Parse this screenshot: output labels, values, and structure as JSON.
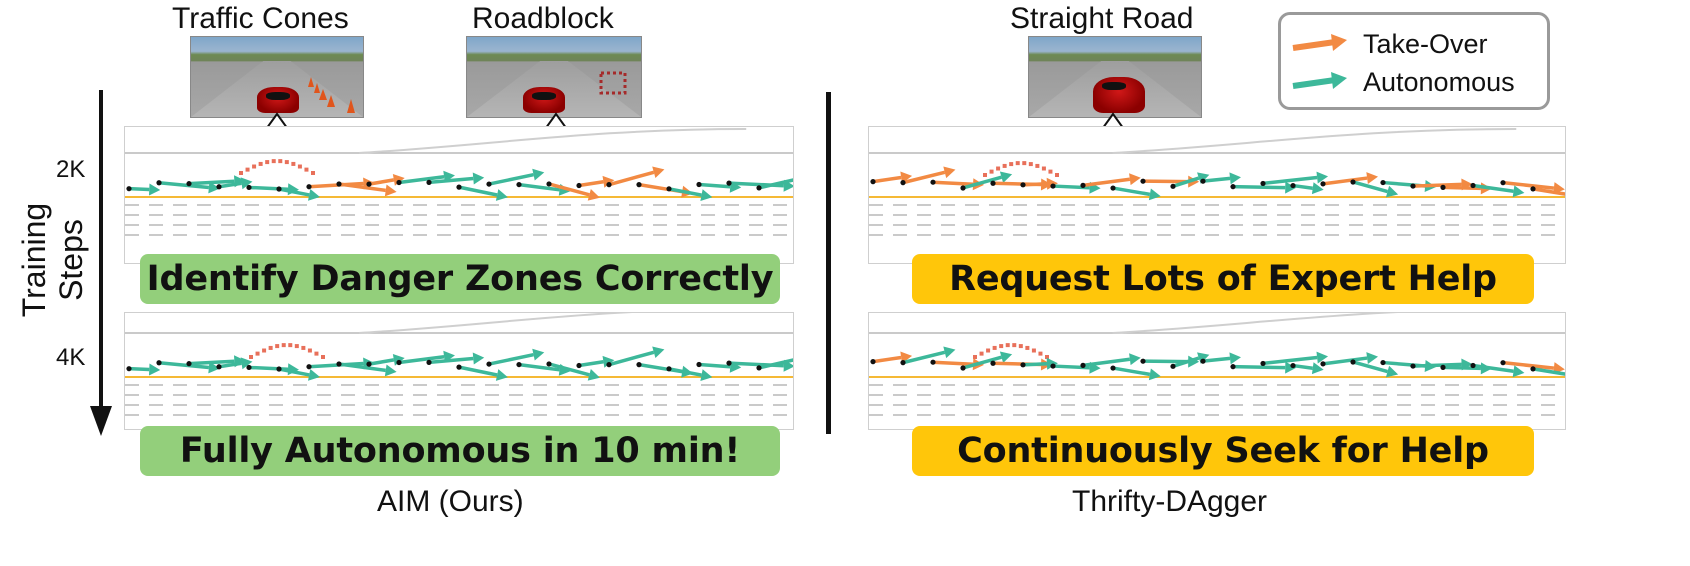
{
  "top_labels": {
    "cones": "Traffic Cones",
    "roadblock": "Roadblock",
    "straight": "Straight Road"
  },
  "legend": {
    "take_over": "Take-Over",
    "autonomous": "Autonomous",
    "take_over_color": "#f28a43",
    "autonomous_color": "#3db89a"
  },
  "axis": {
    "label": "Training Steps",
    "step_2k": "2K",
    "step_4k": "4K"
  },
  "banners": {
    "aim_top": "Identify Danger Zones Correctly",
    "aim_bottom": "Fully Autonomous in 10 min!",
    "thrifty_top": "Request Lots of Expert Help",
    "thrifty_bottom": "Continuously Seek for Help"
  },
  "captions": {
    "aim": "AIM (Ours)",
    "thrifty": "Thrifty-DAgger"
  },
  "colors": {
    "green_banner": "#93cf7b",
    "yellow_banner": "#ffc60a"
  }
}
